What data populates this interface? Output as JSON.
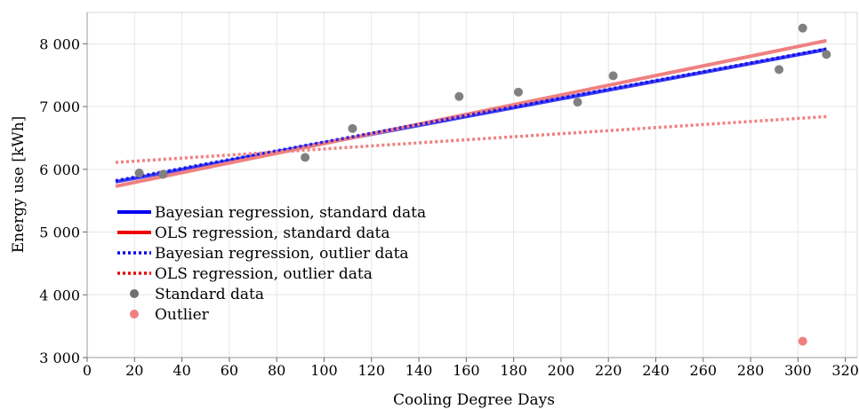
{
  "chart_data": {
    "type": "scatter",
    "title": "",
    "xlabel": "Cooling Degree Days",
    "ylabel": "Energy use [kWh]",
    "xlim": [
      0,
      325
    ],
    "ylim": [
      3000,
      8500
    ],
    "xticks": [
      0,
      20,
      40,
      60,
      80,
      100,
      120,
      140,
      160,
      180,
      200,
      220,
      240,
      260,
      280,
      300,
      320
    ],
    "yticks": [
      3000,
      4000,
      5000,
      6000,
      7000,
      8000
    ],
    "ytick_labels": [
      "3 000",
      "4 000",
      "5 000",
      "6 000",
      "7 000",
      "8 000"
    ],
    "grid": true,
    "legend_position": "left",
    "series": [
      {
        "name": "Bayesian regression, standard data",
        "kind": "line",
        "style": "solid",
        "color": "#0000ee",
        "x": [
          12,
          312
        ],
        "y": [
          5800,
          7910
        ]
      },
      {
        "name": "OLS regression, standard data",
        "kind": "line",
        "style": "solid",
        "color": "#f08080",
        "x": [
          12,
          312
        ],
        "y": [
          5730,
          8050
        ]
      },
      {
        "name": "Bayesian regression, outlier data",
        "kind": "line",
        "style": "dotted",
        "color": "#0000ee",
        "x": [
          12,
          312
        ],
        "y": [
          5820,
          7920
        ]
      },
      {
        "name": "OLS regression, outlier data",
        "kind": "line",
        "style": "dotted",
        "color": "#f08080",
        "x": [
          12,
          312
        ],
        "y": [
          6110,
          6840
        ]
      },
      {
        "name": "Standard data",
        "kind": "points",
        "color": "#808080",
        "x": [
          22,
          32,
          92,
          112,
          157,
          182,
          207,
          222,
          292,
          302,
          312
        ],
        "y": [
          5940,
          5920,
          6190,
          6650,
          7160,
          7230,
          7070,
          7490,
          7590,
          8250,
          7830
        ]
      },
      {
        "name": "Outlier",
        "kind": "points",
        "color": "#f08080",
        "x": [
          302
        ],
        "y": [
          3260
        ]
      }
    ],
    "legend_swatch_colors": {
      "Bayesian regression, standard data": "#0000ee",
      "OLS regression, standard data": "#ee0000",
      "Bayesian regression, outlier data": "#0000ee",
      "OLS regression, outlier data": "#ee0000",
      "Standard data": "#707070",
      "Outlier": "#f08080"
    }
  }
}
